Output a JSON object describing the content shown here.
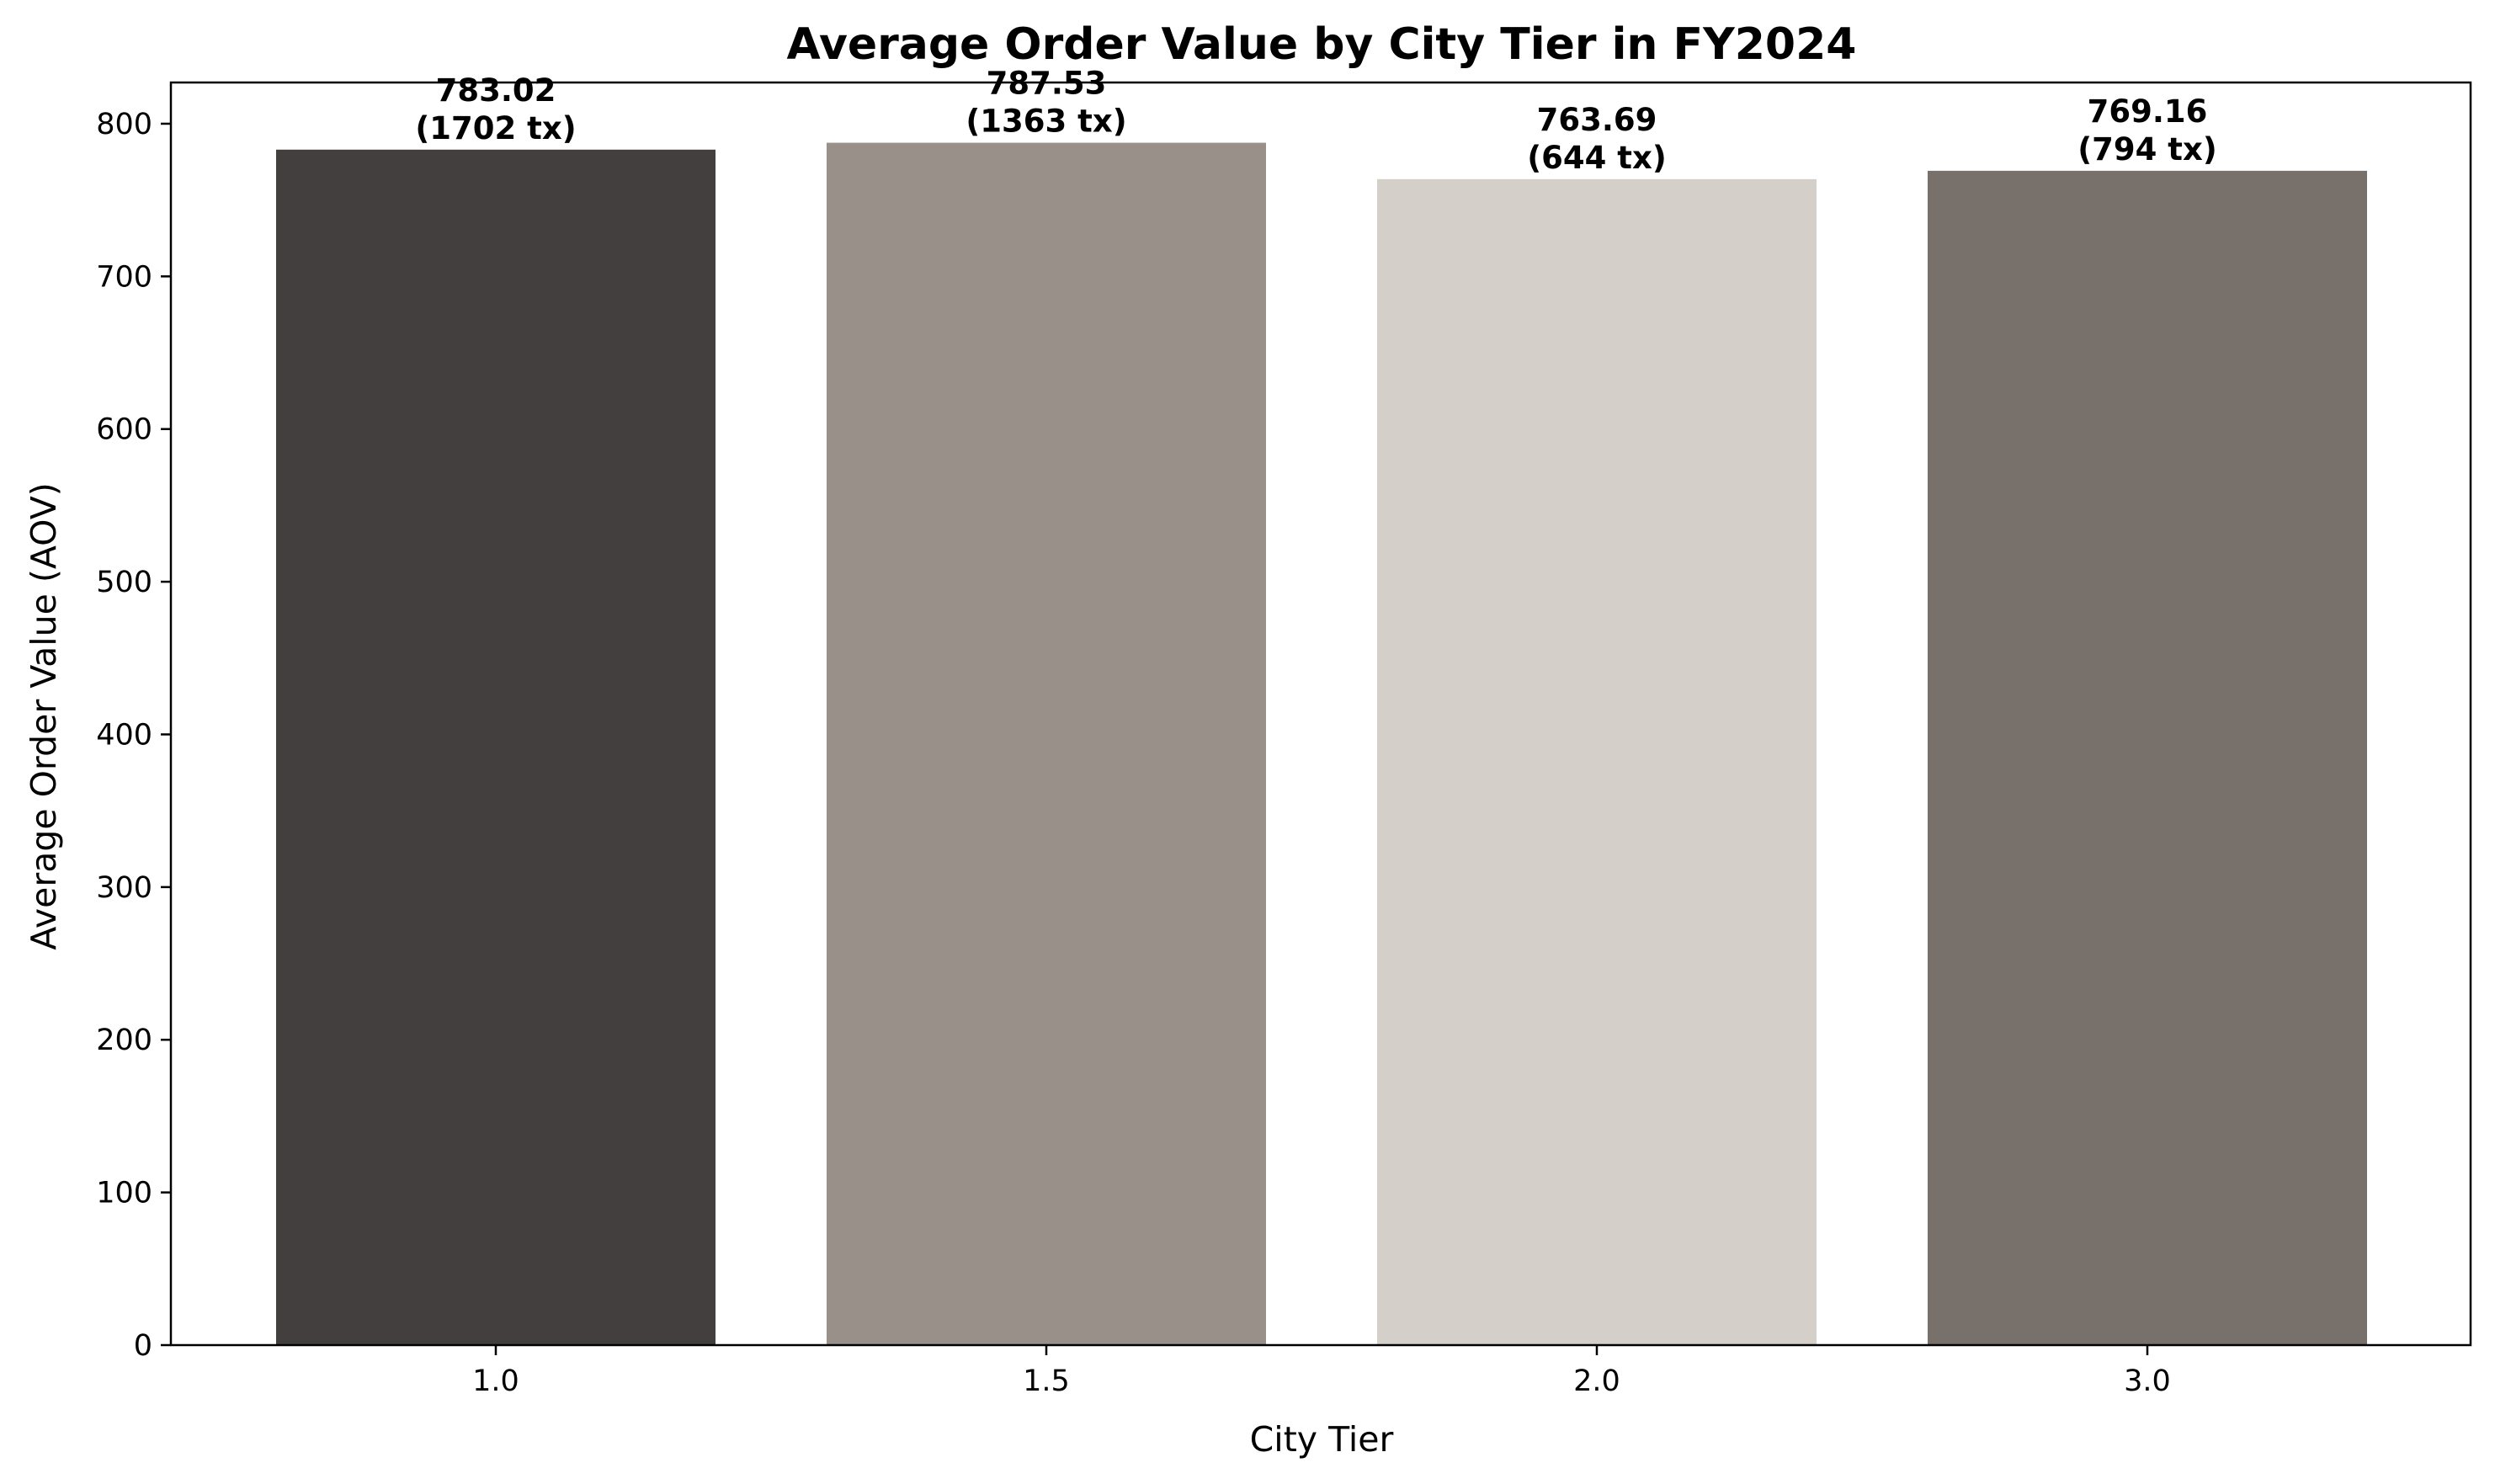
{
  "chart_data": {
    "type": "bar",
    "title": "Average Order Value by City Tier in FY2024",
    "xlabel": "City Tier",
    "ylabel": "Average Order Value (AOV)",
    "categories": [
      "1.0",
      "1.5",
      "2.0",
      "3.0"
    ],
    "values": [
      783.02,
      787.53,
      763.69,
      769.16
    ],
    "value_labels": [
      "783.02",
      "787.53",
      "763.69",
      "769.16"
    ],
    "count_labels": [
      "(1702 tx)",
      "(1363 tx)",
      "(644 tx)",
      "(794 tx)"
    ],
    "colors": [
      "#433f3e",
      "#9a908a",
      "#d4cfc8",
      "#78706b"
    ],
    "ylim": [
      0,
      827
    ],
    "yticks": [
      0,
      100,
      200,
      300,
      400,
      500,
      600,
      700,
      800
    ],
    "grid": false,
    "legend": "none"
  }
}
